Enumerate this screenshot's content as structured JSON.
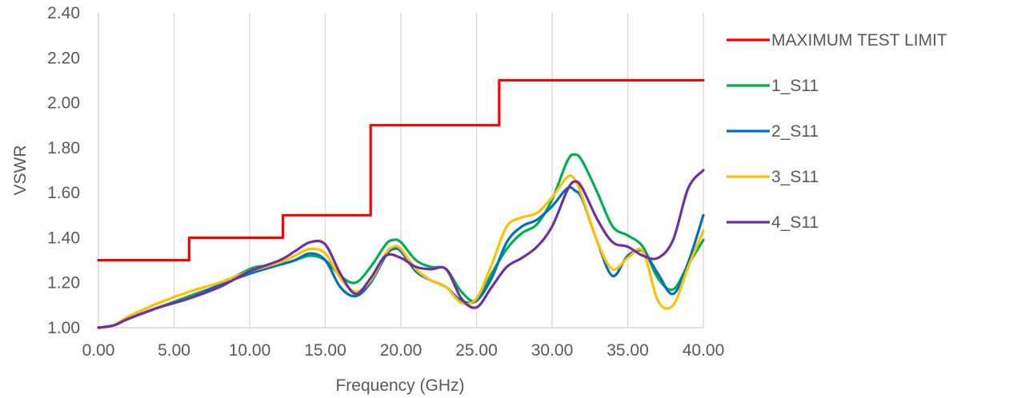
{
  "chart_data": {
    "type": "line",
    "title": "",
    "xlabel": "Frequency (GHz)",
    "ylabel": "VSWR",
    "xlim": [
      0,
      40
    ],
    "ylim": [
      1.0,
      2.4
    ],
    "x_ticks": [
      "0.00",
      "5.00",
      "10.00",
      "15.00",
      "20.00",
      "25.00",
      "30.00",
      "35.00",
      "40.00"
    ],
    "y_ticks": [
      "1.00",
      "1.20",
      "1.40",
      "1.60",
      "1.80",
      "2.00",
      "2.20",
      "2.40"
    ],
    "grid": "vertical",
    "legend_position": "right",
    "series": [
      {
        "name": "MAXIMUM TEST LIMIT",
        "color": "#FF0000",
        "step": true,
        "points": [
          [
            0,
            1.3
          ],
          [
            6,
            1.3
          ],
          [
            6,
            1.4
          ],
          [
            12.2,
            1.4
          ],
          [
            12.2,
            1.5
          ],
          [
            18,
            1.5
          ],
          [
            18,
            1.9
          ],
          [
            26.5,
            1.9
          ],
          [
            26.5,
            2.1
          ],
          [
            40,
            2.1
          ]
        ]
      },
      {
        "name": "1_S11",
        "color": "#00B050",
        "points": [
          [
            0,
            1.0
          ],
          [
            1,
            1.01
          ],
          [
            2,
            1.04
          ],
          [
            4,
            1.09
          ],
          [
            6,
            1.14
          ],
          [
            8,
            1.19
          ],
          [
            10,
            1.26
          ],
          [
            11,
            1.275
          ],
          [
            12,
            1.28
          ],
          [
            13,
            1.3
          ],
          [
            14,
            1.32
          ],
          [
            15,
            1.3
          ],
          [
            16,
            1.23
          ],
          [
            17,
            1.2
          ],
          [
            18,
            1.27
          ],
          [
            19,
            1.37
          ],
          [
            19.5,
            1.39
          ],
          [
            20,
            1.38
          ],
          [
            21,
            1.3
          ],
          [
            22,
            1.27
          ],
          [
            23,
            1.26
          ],
          [
            24,
            1.16
          ],
          [
            25,
            1.12
          ],
          [
            26,
            1.24
          ],
          [
            27,
            1.35
          ],
          [
            28,
            1.42
          ],
          [
            29,
            1.46
          ],
          [
            30,
            1.57
          ],
          [
            31,
            1.74
          ],
          [
            31.5,
            1.77
          ],
          [
            32,
            1.74
          ],
          [
            33,
            1.6
          ],
          [
            34,
            1.45
          ],
          [
            35,
            1.41
          ],
          [
            36,
            1.36
          ],
          [
            37,
            1.22
          ],
          [
            38,
            1.17
          ],
          [
            39,
            1.28
          ],
          [
            40,
            1.39
          ]
        ]
      },
      {
        "name": "2_S11",
        "color": "#0070C0",
        "points": [
          [
            0,
            1.0
          ],
          [
            1,
            1.01
          ],
          [
            2,
            1.04
          ],
          [
            4,
            1.09
          ],
          [
            6,
            1.13
          ],
          [
            8,
            1.19
          ],
          [
            10,
            1.24
          ],
          [
            12,
            1.28
          ],
          [
            13,
            1.3
          ],
          [
            14,
            1.33
          ],
          [
            15,
            1.3
          ],
          [
            16,
            1.18
          ],
          [
            17,
            1.14
          ],
          [
            18,
            1.2
          ],
          [
            19,
            1.32
          ],
          [
            19.5,
            1.35
          ],
          [
            20,
            1.34
          ],
          [
            21,
            1.25
          ],
          [
            22,
            1.21
          ],
          [
            23,
            1.18
          ],
          [
            24,
            1.12
          ],
          [
            25,
            1.12
          ],
          [
            26,
            1.22
          ],
          [
            27,
            1.38
          ],
          [
            28,
            1.45
          ],
          [
            29,
            1.48
          ],
          [
            30,
            1.54
          ],
          [
            31,
            1.62
          ],
          [
            31.5,
            1.61
          ],
          [
            32,
            1.57
          ],
          [
            33,
            1.38
          ],
          [
            34,
            1.23
          ],
          [
            35,
            1.32
          ],
          [
            36,
            1.34
          ],
          [
            37,
            1.24
          ],
          [
            38,
            1.15
          ],
          [
            39,
            1.29
          ],
          [
            40,
            1.5
          ]
        ]
      },
      {
        "name": "3_S11",
        "color": "#FFC000",
        "points": [
          [
            0,
            1.0
          ],
          [
            1,
            1.01
          ],
          [
            2,
            1.05
          ],
          [
            4,
            1.11
          ],
          [
            6,
            1.16
          ],
          [
            8,
            1.2
          ],
          [
            10,
            1.25
          ],
          [
            12,
            1.29
          ],
          [
            13,
            1.32
          ],
          [
            14,
            1.35
          ],
          [
            15,
            1.33
          ],
          [
            16,
            1.22
          ],
          [
            17,
            1.16
          ],
          [
            18,
            1.21
          ],
          [
            19,
            1.33
          ],
          [
            19.5,
            1.36
          ],
          [
            20,
            1.35
          ],
          [
            21,
            1.26
          ],
          [
            22,
            1.21
          ],
          [
            23,
            1.18
          ],
          [
            24,
            1.11
          ],
          [
            25,
            1.13
          ],
          [
            26,
            1.28
          ],
          [
            27,
            1.45
          ],
          [
            28,
            1.49
          ],
          [
            29,
            1.51
          ],
          [
            30,
            1.58
          ],
          [
            31,
            1.67
          ],
          [
            31.5,
            1.66
          ],
          [
            32,
            1.58
          ],
          [
            33,
            1.38
          ],
          [
            34,
            1.26
          ],
          [
            35,
            1.31
          ],
          [
            36,
            1.34
          ],
          [
            37,
            1.12
          ],
          [
            38,
            1.1
          ],
          [
            39,
            1.27
          ],
          [
            40,
            1.43
          ]
        ]
      },
      {
        "name": "4_S11",
        "color": "#7030A0",
        "points": [
          [
            0,
            1.0
          ],
          [
            1,
            1.01
          ],
          [
            2,
            1.04
          ],
          [
            4,
            1.09
          ],
          [
            6,
            1.13
          ],
          [
            8,
            1.18
          ],
          [
            10,
            1.25
          ],
          [
            12,
            1.3
          ],
          [
            13,
            1.34
          ],
          [
            14,
            1.38
          ],
          [
            15,
            1.37
          ],
          [
            16,
            1.24
          ],
          [
            17,
            1.15
          ],
          [
            18,
            1.22
          ],
          [
            19,
            1.32
          ],
          [
            20,
            1.31
          ],
          [
            21,
            1.27
          ],
          [
            22,
            1.26
          ],
          [
            23,
            1.26
          ],
          [
            24,
            1.13
          ],
          [
            25,
            1.09
          ],
          [
            26,
            1.18
          ],
          [
            27,
            1.27
          ],
          [
            28,
            1.31
          ],
          [
            29,
            1.36
          ],
          [
            30,
            1.45
          ],
          [
            31,
            1.61
          ],
          [
            31.5,
            1.65
          ],
          [
            32,
            1.62
          ],
          [
            33,
            1.48
          ],
          [
            34,
            1.38
          ],
          [
            35,
            1.36
          ],
          [
            36,
            1.32
          ],
          [
            37,
            1.31
          ],
          [
            38,
            1.39
          ],
          [
            39,
            1.62
          ],
          [
            40,
            1.7
          ]
        ]
      }
    ]
  }
}
